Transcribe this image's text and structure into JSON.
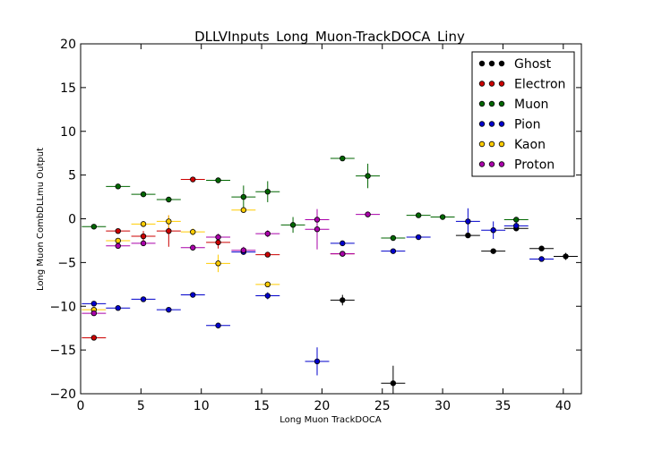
{
  "chart_data": {
    "type": "scatter",
    "title": "DLLVInputs_Long_Muon-TrackDOCA_Liny",
    "xlabel": "Long Muon TrackDOCA",
    "ylabel": "Long Muon CombDLLmu Output",
    "xlim": [
      0,
      41.5
    ],
    "ylim": [
      -20,
      20
    ],
    "x_ticks": [
      0,
      5,
      10,
      15,
      20,
      25,
      30,
      35,
      40
    ],
    "y_ticks": [
      -20,
      -15,
      -10,
      -5,
      0,
      5,
      10,
      15,
      20
    ],
    "legend_position": "top-right",
    "grid": false,
    "series": [
      {
        "name": "Ghost",
        "color": "#000000",
        "points": [
          {
            "x": 21.7,
            "y": -9.3,
            "xerr": 1.0,
            "yerr": 0.6
          },
          {
            "x": 25.9,
            "y": -18.8,
            "xerr": 1.0,
            "yerr": 2.0
          },
          {
            "x": 32.1,
            "y": -1.9,
            "xerr": 1.0,
            "yerr": 0.2
          },
          {
            "x": 34.2,
            "y": -3.7,
            "xerr": 1.0,
            "yerr": 0.2
          },
          {
            "x": 36.1,
            "y": -1.1,
            "xerr": 1.0,
            "yerr": 0.2
          },
          {
            "x": 38.2,
            "y": -3.4,
            "xerr": 1.0,
            "yerr": 0.2
          },
          {
            "x": 40.2,
            "y": -4.3,
            "xerr": 1.0,
            "yerr": 0.4
          }
        ]
      },
      {
        "name": "Electron",
        "color": "#cc0000",
        "points": [
          {
            "x": 1.1,
            "y": -13.6,
            "xerr": 1.0,
            "yerr": 0.2
          },
          {
            "x": 3.1,
            "y": -1.4,
            "xerr": 1.0,
            "yerr": 0.2
          },
          {
            "x": 5.2,
            "y": -2.0,
            "xerr": 1.0,
            "yerr": 0.6
          },
          {
            "x": 7.3,
            "y": -1.4,
            "xerr": 1.0,
            "yerr": 1.8
          },
          {
            "x": 9.3,
            "y": 4.5,
            "xerr": 1.0,
            "yerr": 0.2
          },
          {
            "x": 11.4,
            "y": -2.7,
            "xerr": 1.0,
            "yerr": 0.7
          },
          {
            "x": 15.5,
            "y": -4.1,
            "xerr": 1.0,
            "yerr": 0.2
          },
          {
            "x": 21.7,
            "y": -4.0,
            "xerr": 1.0,
            "yerr": 0.2
          }
        ]
      },
      {
        "name": "Muon",
        "color": "#006600",
        "points": [
          {
            "x": 1.1,
            "y": -0.9,
            "xerr": 1.0,
            "yerr": 0.2
          },
          {
            "x": 3.1,
            "y": 3.7,
            "xerr": 1.0,
            "yerr": 0.2
          },
          {
            "x": 5.2,
            "y": 2.8,
            "xerr": 1.0,
            "yerr": 0.2
          },
          {
            "x": 7.3,
            "y": 2.2,
            "xerr": 1.0,
            "yerr": 0.2
          },
          {
            "x": 11.4,
            "y": 4.4,
            "xerr": 1.0,
            "yerr": 0.3
          },
          {
            "x": 13.5,
            "y": 2.5,
            "xerr": 1.0,
            "yerr": 1.3
          },
          {
            "x": 15.5,
            "y": 3.1,
            "xerr": 1.0,
            "yerr": 1.2
          },
          {
            "x": 17.6,
            "y": -0.7,
            "xerr": 1.0,
            "yerr": 0.9
          },
          {
            "x": 21.7,
            "y": 6.9,
            "xerr": 1.0,
            "yerr": 0.2
          },
          {
            "x": 23.8,
            "y": 4.9,
            "xerr": 1.0,
            "yerr": 1.4
          },
          {
            "x": 25.9,
            "y": -2.2,
            "xerr": 1.0,
            "yerr": 0.2
          },
          {
            "x": 28.0,
            "y": 0.4,
            "xerr": 1.0,
            "yerr": 0.2
          },
          {
            "x": 30.0,
            "y": 0.2,
            "xerr": 1.0,
            "yerr": 0.2
          },
          {
            "x": 36.1,
            "y": -0.1,
            "xerr": 1.0,
            "yerr": 0.2
          }
        ]
      },
      {
        "name": "Pion",
        "color": "#0000cc",
        "points": [
          {
            "x": 1.1,
            "y": -9.7,
            "xerr": 1.0,
            "yerr": 0.2
          },
          {
            "x": 3.1,
            "y": -10.2,
            "xerr": 1.0,
            "yerr": 0.2
          },
          {
            "x": 5.2,
            "y": -9.2,
            "xerr": 1.0,
            "yerr": 0.2
          },
          {
            "x": 7.3,
            "y": -10.4,
            "xerr": 1.0,
            "yerr": 0.2
          },
          {
            "x": 9.3,
            "y": -8.7,
            "xerr": 1.0,
            "yerr": 0.2
          },
          {
            "x": 11.4,
            "y": -12.2,
            "xerr": 1.0,
            "yerr": 0.2
          },
          {
            "x": 13.5,
            "y": -3.8,
            "xerr": 1.0,
            "yerr": 0.2
          },
          {
            "x": 15.5,
            "y": -8.8,
            "xerr": 1.0,
            "yerr": 0.4
          },
          {
            "x": 19.6,
            "y": -16.3,
            "xerr": 1.0,
            "yerr": 1.6
          },
          {
            "x": 21.7,
            "y": -2.8,
            "xerr": 1.0,
            "yerr": 0.2
          },
          {
            "x": 25.9,
            "y": -3.7,
            "xerr": 1.0,
            "yerr": 0.2
          },
          {
            "x": 28.0,
            "y": -2.1,
            "xerr": 1.0,
            "yerr": 0.2
          },
          {
            "x": 32.1,
            "y": -0.3,
            "xerr": 1.0,
            "yerr": 1.5
          },
          {
            "x": 34.2,
            "y": -1.3,
            "xerr": 1.0,
            "yerr": 1.0
          },
          {
            "x": 36.1,
            "y": -0.8,
            "xerr": 1.0,
            "yerr": 0.4
          },
          {
            "x": 38.2,
            "y": -4.6,
            "xerr": 1.0,
            "yerr": 0.2
          }
        ]
      },
      {
        "name": "Kaon",
        "color": "#ffcc00",
        "points": [
          {
            "x": 1.1,
            "y": -10.4,
            "xerr": 1.0,
            "yerr": 0.3
          },
          {
            "x": 3.1,
            "y": -2.5,
            "xerr": 1.0,
            "yerr": 0.3
          },
          {
            "x": 5.2,
            "y": -0.6,
            "xerr": 1.0,
            "yerr": 0.3
          },
          {
            "x": 7.3,
            "y": -0.3,
            "xerr": 1.0,
            "yerr": 0.7
          },
          {
            "x": 9.3,
            "y": -1.5,
            "xerr": 1.0,
            "yerr": 0.4
          },
          {
            "x": 11.4,
            "y": -5.1,
            "xerr": 1.0,
            "yerr": 1.0
          },
          {
            "x": 13.5,
            "y": 1.0,
            "xerr": 1.0,
            "yerr": 0.3
          },
          {
            "x": 15.5,
            "y": -7.5,
            "xerr": 1.0,
            "yerr": 0.3
          }
        ]
      },
      {
        "name": "Proton",
        "color": "#aa00aa",
        "points": [
          {
            "x": 1.1,
            "y": -10.8,
            "xerr": 1.0,
            "yerr": 0.2
          },
          {
            "x": 3.1,
            "y": -3.1,
            "xerr": 1.0,
            "yerr": 0.2
          },
          {
            "x": 5.2,
            "y": -2.8,
            "xerr": 1.0,
            "yerr": 0.3
          },
          {
            "x": 9.3,
            "y": -3.3,
            "xerr": 1.0,
            "yerr": 0.2
          },
          {
            "x": 11.4,
            "y": -2.1,
            "xerr": 1.0,
            "yerr": 0.4
          },
          {
            "x": 13.5,
            "y": -3.6,
            "xerr": 1.0,
            "yerr": 0.4
          },
          {
            "x": 15.5,
            "y": -1.7,
            "xerr": 1.0,
            "yerr": 0.4
          },
          {
            "x": 19.6,
            "y": -1.2,
            "xerr": 1.0,
            "yerr": 2.3
          },
          {
            "x": 19.6,
            "y": -0.1,
            "xerr": 1.0,
            "yerr": 1.2
          },
          {
            "x": 21.7,
            "y": -4.0,
            "xerr": 1.0,
            "yerr": 0.2
          },
          {
            "x": 23.8,
            "y": 0.5,
            "xerr": 1.0,
            "yerr": 0.2
          }
        ]
      }
    ]
  }
}
